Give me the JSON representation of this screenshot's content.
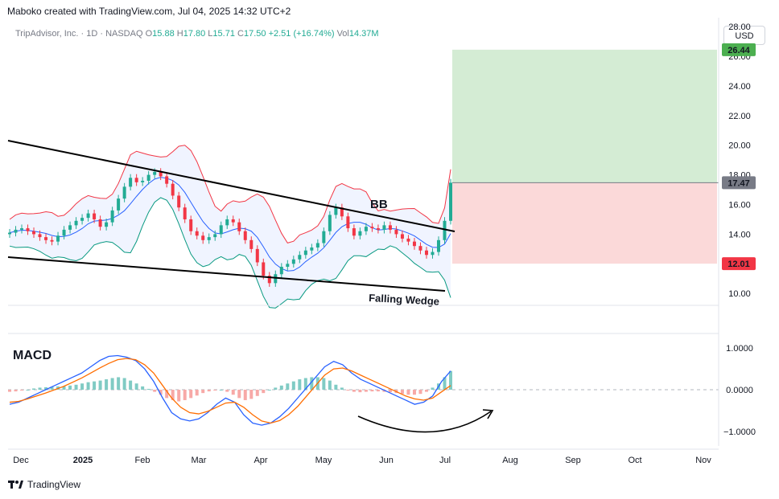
{
  "header": {
    "credit": "Maboko created with TradingView.com, Jul 04, 2025 14:32 UTC+2"
  },
  "legend": {
    "symbol": "TripAdvisor, Inc. · 1D · NASDAQ",
    "open_label": "O",
    "open": "15.88",
    "high_label": "H",
    "high": "17.80",
    "low_label": "L",
    "low": "15.71",
    "close_label": "C",
    "close": "17.50",
    "change": "+2.51 (+16.74%)",
    "vol_label": "Vol",
    "vol": "14.37M"
  },
  "currency_button": "USD",
  "footer": {
    "brand": "TradingView"
  },
  "colors": {
    "up": "#22ab94",
    "down": "#f23645",
    "bb_upper": "#f23645",
    "bb_basis": "#2962ff",
    "bb_lower": "#089981",
    "macd": "#2962ff",
    "signal": "#ff6d00",
    "target_zone": "#d4ecd4",
    "stop_zone": "#fbd9d9"
  },
  "chart_data": [
    {
      "type": "candlestick",
      "title": "TripAdvisor, Inc. · 1D · NASDAQ",
      "x_ticks": [
        "Dec",
        "2025",
        "Feb",
        "Mar",
        "Apr",
        "May",
        "Jun",
        "Jul",
        "Aug",
        "Sep",
        "Oct",
        "Nov"
      ],
      "y_ticks": [
        10.0,
        12.0,
        14.0,
        16.0,
        18.0,
        20.0,
        22.0,
        24.0,
        26.0,
        28.0
      ],
      "ylim": [
        9.2,
        28.6
      ],
      "price_labels": [
        {
          "value": 26.44,
          "label": "26.44",
          "color": "#4caf50"
        },
        {
          "value": 17.47,
          "label": "17.47",
          "color": "#787b86"
        },
        {
          "value": 12.01,
          "label": "12.01",
          "color": "#f23645"
        }
      ],
      "position": {
        "entry": 17.47,
        "target": 26.44,
        "stop": 12.01
      },
      "close_series_approx": [
        14.1,
        14.3,
        14.4,
        14.2,
        14.0,
        13.8,
        13.6,
        13.5,
        13.9,
        14.3,
        14.6,
        14.9,
        15.1,
        15.4,
        15.0,
        14.5,
        14.8,
        15.6,
        16.4,
        17.2,
        17.8,
        17.5,
        17.6,
        18.0,
        18.2,
        17.9,
        17.4,
        16.6,
        15.8,
        15.0,
        14.2,
        13.9,
        13.6,
        13.8,
        14.0,
        14.6,
        15.0,
        14.8,
        14.2,
        13.6,
        13.0,
        12.1,
        11.2,
        10.7,
        11.3,
        11.8,
        12.0,
        12.3,
        12.6,
        12.9,
        13.1,
        13.4,
        14.2,
        15.3,
        15.8,
        15.2,
        14.4,
        13.9,
        14.2,
        14.5,
        14.4,
        14.3,
        14.6,
        14.3,
        14.0,
        13.7,
        13.5,
        13.2,
        12.9,
        12.6,
        12.8,
        13.6,
        14.9,
        17.47
      ],
      "annotations": [
        {
          "text": "BB"
        },
        {
          "text": "Falling Wedge"
        }
      ],
      "indicators": [
        "Bollinger Bands"
      ]
    },
    {
      "type": "bar",
      "title": "MACD",
      "y_ticks": [
        "1.0000",
        "0.0000",
        "−1.0000"
      ],
      "ylim": [
        -1.35,
        1.35
      ],
      "histogram_approx": [
        -0.05,
        -0.04,
        -0.02,
        0.0,
        0.03,
        0.05,
        0.06,
        0.07,
        0.08,
        0.08,
        0.1,
        0.12,
        0.15,
        0.18,
        0.2,
        0.22,
        0.25,
        0.28,
        0.3,
        0.28,
        0.22,
        0.15,
        0.08,
        0.02,
        -0.05,
        -0.12,
        -0.2,
        -0.25,
        -0.28,
        -0.25,
        -0.2,
        -0.14,
        -0.08,
        -0.04,
        -0.02,
        0.0,
        -0.05,
        -0.12,
        -0.2,
        -0.25,
        -0.22,
        -0.15,
        -0.08,
        0.0,
        0.05,
        0.1,
        0.15,
        0.2,
        0.25,
        0.28,
        0.3,
        0.3,
        0.28,
        0.22,
        0.12,
        0.05,
        -0.02,
        -0.05,
        -0.06,
        -0.05,
        -0.04,
        -0.04,
        -0.05,
        -0.06,
        -0.08,
        -0.1,
        -0.12,
        -0.12,
        -0.1,
        -0.05,
        0.05,
        0.15,
        0.3,
        0.45
      ],
      "series": [
        {
          "values": [
            -0.35,
            -0.3,
            -0.2,
            -0.1,
            0.0,
            0.1,
            0.2,
            0.3,
            0.4,
            0.55,
            0.7,
            0.8,
            0.82,
            0.78,
            0.7,
            0.5,
            0.2,
            -0.2,
            -0.55,
            -0.7,
            -0.75,
            -0.7,
            -0.55,
            -0.35,
            -0.2,
            -0.3,
            -0.6,
            -0.8,
            -0.85,
            -0.8,
            -0.65,
            -0.45,
            -0.2,
            0.05,
            0.3,
            0.55,
            0.68,
            0.6,
            0.4,
            0.25,
            0.15,
            0.05,
            -0.05,
            -0.15,
            -0.25,
            -0.35,
            -0.3,
            -0.15,
            0.2,
            0.45
          ]
        },
        {
          "values": [
            -0.3,
            -0.28,
            -0.22,
            -0.15,
            -0.08,
            0.0,
            0.08,
            0.18,
            0.28,
            0.4,
            0.52,
            0.63,
            0.72,
            0.75,
            0.72,
            0.6,
            0.4,
            0.1,
            -0.2,
            -0.42,
            -0.55,
            -0.58,
            -0.52,
            -0.42,
            -0.32,
            -0.3,
            -0.42,
            -0.6,
            -0.75,
            -0.8,
            -0.74,
            -0.6,
            -0.4,
            -0.15,
            0.1,
            0.35,
            0.5,
            0.52,
            0.45,
            0.35,
            0.25,
            0.15,
            0.05,
            -0.05,
            -0.15,
            -0.22,
            -0.25,
            -0.2,
            -0.05,
            0.1
          ]
        }
      ],
      "annotations": [
        {
          "text": ""
        }
      ]
    }
  ]
}
